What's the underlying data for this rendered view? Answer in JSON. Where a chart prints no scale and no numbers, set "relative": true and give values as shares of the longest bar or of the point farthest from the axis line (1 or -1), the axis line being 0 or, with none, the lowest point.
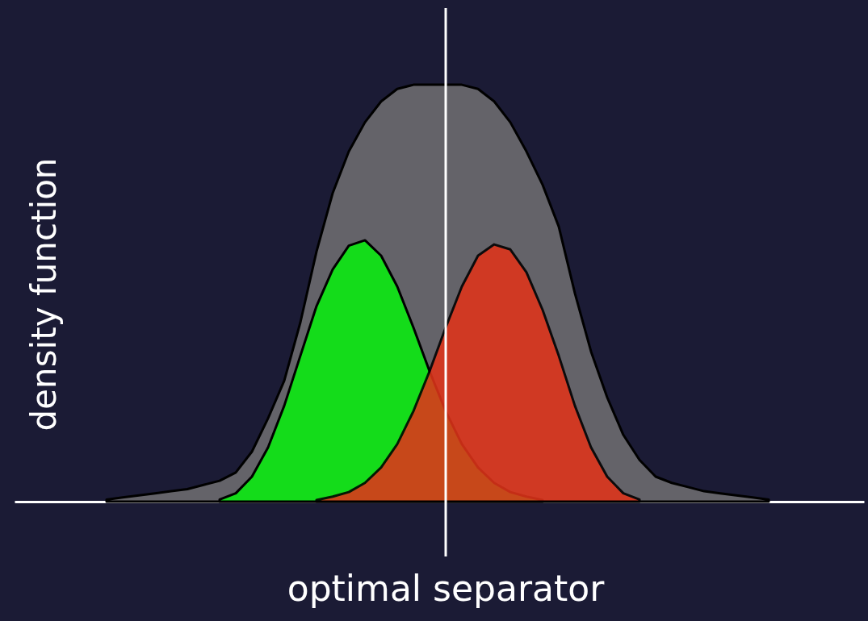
{
  "chart_data": {
    "type": "area",
    "relative": true,
    "ylabel": "density function",
    "categories": [
      null,
      null,
      null,
      null,
      null,
      null,
      null,
      null,
      null,
      null,
      null,
      null,
      null,
      null,
      null,
      null,
      null,
      null,
      null,
      null,
      null,
      null,
      null,
      null,
      null,
      null,
      null,
      null,
      null,
      null,
      null,
      null,
      null,
      null,
      null,
      null,
      null,
      null,
      null,
      null,
      null,
      null,
      null
    ],
    "tick_labels": false,
    "grid": false,
    "series": [
      {
        "color": "#646369",
        "values": [
          0.005,
          0.01,
          0.015,
          0.02,
          0.025,
          0.03,
          0.04,
          0.05,
          0.07,
          0.12,
          0.2,
          0.29,
          0.43,
          0.6,
          0.74,
          0.84,
          0.91,
          0.96,
          0.99,
          1,
          1,
          1,
          1,
          0.99,
          0.96,
          0.91,
          0.84,
          0.76,
          0.66,
          0.5,
          0.36,
          0.25,
          0.16,
          0.1,
          0.06,
          0.045,
          0.035,
          0.025,
          0.02,
          0.015,
          0.01,
          0.005,
          null
        ]
      },
      {
        "color": "#14dc1a",
        "values": [
          null,
          null,
          null,
          null,
          null,
          null,
          null,
          0.005,
          0.02,
          0.06,
          0.13,
          0.23,
          0.35,
          0.469,
          0.557,
          0.614,
          0.627,
          0.59,
          0.516,
          0.418,
          0.313,
          0.217,
          0.138,
          0.082,
          0.045,
          0.023,
          0.012,
          0.004,
          null,
          null,
          null,
          null,
          null,
          null,
          null,
          null,
          null,
          null,
          null,
          null,
          null,
          null,
          null
        ]
      },
      {
        "color": "#e0341a",
        "values": [
          null,
          null,
          null,
          null,
          null,
          null,
          null,
          null,
          null,
          null,
          null,
          null,
          null,
          0.004,
          0.012,
          0.023,
          0.045,
          0.082,
          0.138,
          0.217,
          0.313,
          0.418,
          0.516,
          0.59,
          0.617,
          0.605,
          0.55,
          0.46,
          0.35,
          0.23,
          0.13,
          0.06,
          0.02,
          0.005,
          null,
          null,
          null,
          null,
          null,
          null,
          null,
          null,
          null
        ]
      }
    ],
    "ref_lines": [
      {
        "axis": "x",
        "label": "optimal separator",
        "color": "#ffffff"
      }
    ]
  }
}
